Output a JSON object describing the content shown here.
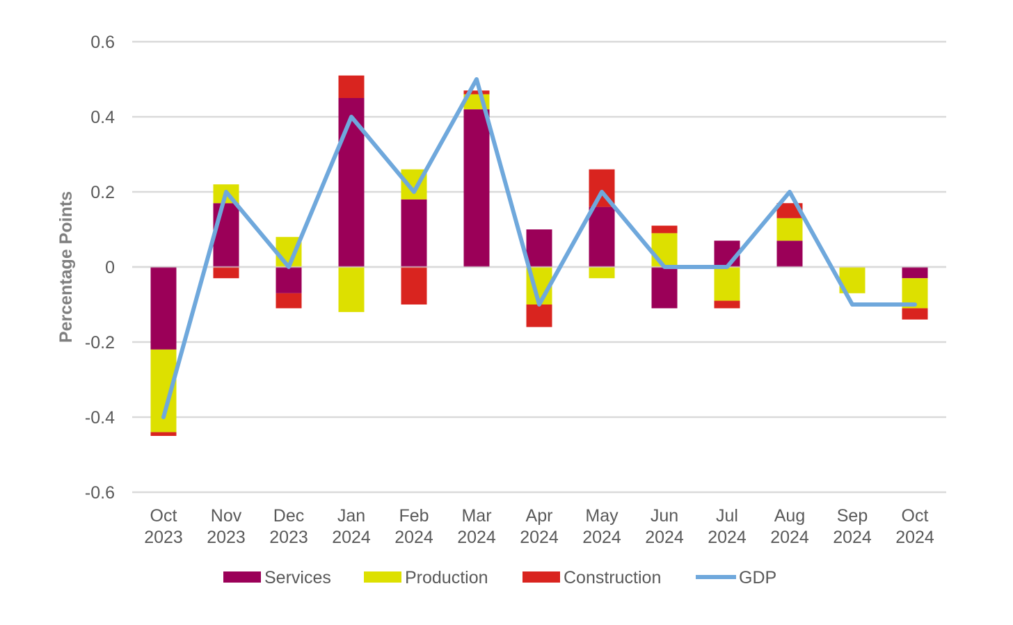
{
  "chart_data": {
    "type": "bar",
    "stacked": true,
    "ylabel": "Percentage Points",
    "xlabel": "",
    "ylim": [
      -0.6,
      0.6
    ],
    "yticks": [
      "0.6",
      "0.4",
      "0.2",
      "0",
      "-0.2",
      "-0.4",
      "-0.6"
    ],
    "ytick_values": [
      0.6,
      0.4,
      0.2,
      0,
      -0.2,
      -0.4,
      -0.6
    ],
    "grid": true,
    "legend_position": "bottom",
    "categories": [
      [
        "Oct",
        "2023"
      ],
      [
        "Nov",
        "2023"
      ],
      [
        "Dec",
        "2023"
      ],
      [
        "Jan",
        "2024"
      ],
      [
        "Feb",
        "2024"
      ],
      [
        "Mar",
        "2024"
      ],
      [
        "Apr",
        "2024"
      ],
      [
        "May",
        "2024"
      ],
      [
        "Jun",
        "2024"
      ],
      [
        "Jul",
        "2024"
      ],
      [
        "Aug",
        "2024"
      ],
      [
        "Sep",
        "2024"
      ],
      [
        "Oct",
        "2024"
      ]
    ],
    "series": [
      {
        "name": "Services",
        "type": "bar",
        "color": "#9b0058",
        "values": [
          -0.22,
          0.17,
          -0.07,
          0.45,
          0.18,
          0.42,
          0.1,
          0.16,
          -0.11,
          0.07,
          0.07,
          0.0,
          -0.03
        ]
      },
      {
        "name": "Production",
        "type": "bar",
        "color": "#dde000",
        "values": [
          -0.22,
          0.05,
          0.08,
          -0.12,
          0.08,
          0.04,
          -0.1,
          -0.03,
          0.09,
          -0.09,
          0.06,
          -0.07,
          -0.08
        ]
      },
      {
        "name": "Construction",
        "type": "bar",
        "color": "#d9241f",
        "values": [
          -0.01,
          -0.03,
          -0.04,
          0.06,
          -0.1,
          0.01,
          -0.06,
          0.1,
          0.02,
          -0.02,
          0.04,
          0.0,
          -0.03
        ]
      },
      {
        "name": "GDP",
        "type": "line",
        "color": "#6fa8dc",
        "values": [
          -0.4,
          0.2,
          0.0,
          0.4,
          0.2,
          0.5,
          -0.1,
          0.2,
          0.0,
          0.0,
          0.2,
          -0.1,
          -0.1
        ]
      }
    ]
  }
}
